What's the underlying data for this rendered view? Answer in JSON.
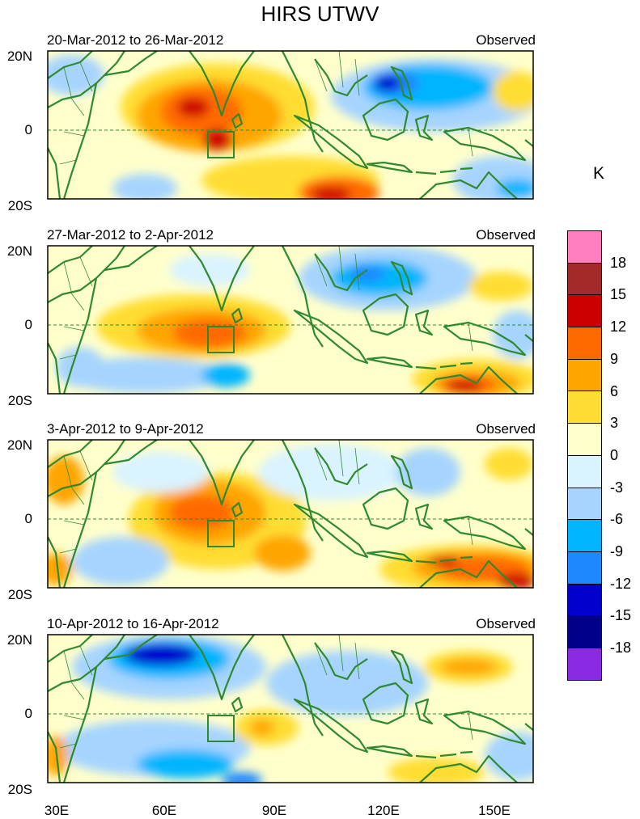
{
  "title": "HIRS UTWV",
  "unit": "K",
  "colors": {
    "land": "#2f8a2f",
    "equator": "#2f8a2f",
    "box": "#2f8a2f"
  },
  "lat_labels": [
    "20N",
    "0",
    "20S"
  ],
  "lon_labels": [
    "30E",
    "60E",
    "90E",
    "120E",
    "150E"
  ],
  "colorbar": {
    "colors": [
      "#ff7fc0",
      "#a32a2a",
      "#cc0000",
      "#ff6a00",
      "#ffa500",
      "#ffdd33",
      "#ffffcc",
      "#d9f3ff",
      "#a6d4ff",
      "#00b5ff",
      "#1e88ff",
      "#0000cd",
      "#00008b",
      "#8a2be2"
    ],
    "labels": [
      "18",
      "15",
      "12",
      "9",
      "6",
      "3",
      "0",
      "-3",
      "-6",
      "-9",
      "-12",
      "-15",
      "-18"
    ]
  },
  "panels": [
    {
      "period": "20-Mar-2012 to 26-Mar-2012",
      "label": "Observed"
    },
    {
      "period": "27-Mar-2012 to 2-Apr-2012",
      "label": "Observed"
    },
    {
      "period": "3-Apr-2012 to 9-Apr-2012",
      "label": "Observed"
    },
    {
      "period": "10-Apr-2012 to 16-Apr-2012",
      "label": "Observed"
    }
  ]
}
